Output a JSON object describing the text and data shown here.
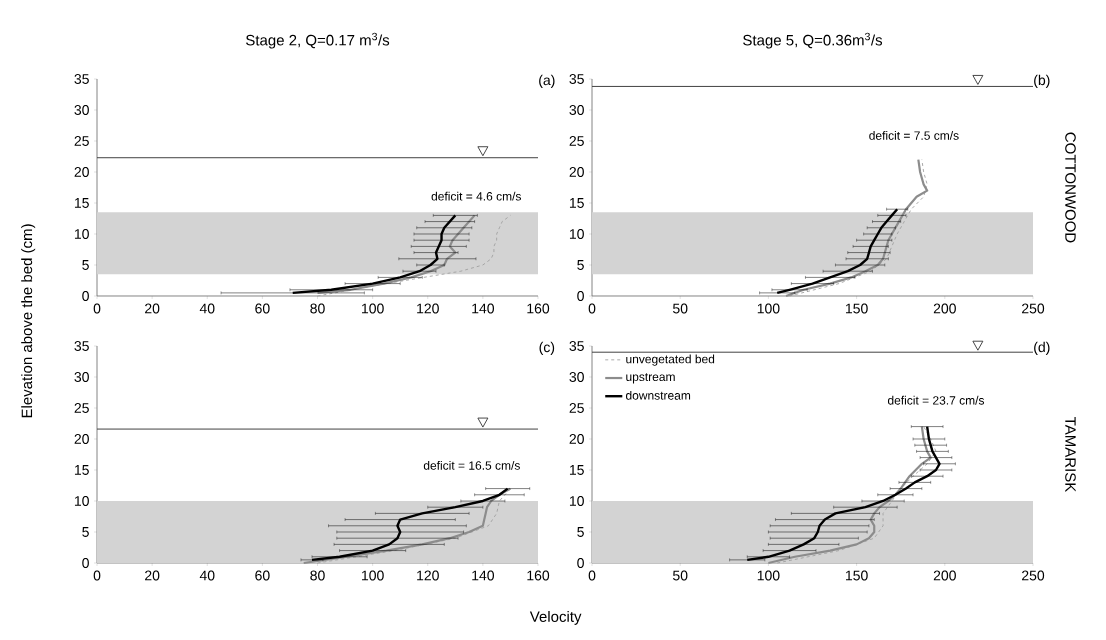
{
  "chart_data": [
    {
      "type": "line",
      "title": "Stage 2, Q=0.17 m$^{3}$/s",
      "ylabel": "Elevation above the bed (cm)",
      "xlim": [
        0,
        160
      ],
      "ylim": [
        0,
        35
      ],
      "xticks": [
        0,
        20,
        40,
        60,
        80,
        100,
        120,
        140,
        160
      ],
      "yticks": [
        0,
        5,
        10,
        15,
        20,
        25,
        30,
        35
      ],
      "marker": "none",
      "legend": false,
      "series": [
        {
          "color": "#a0a0a0",
          "line_style": "dashed",
          "x": [
            80,
            105,
            132,
            140,
            143,
            144,
            144,
            145,
            145,
            146,
            147,
            150
          ],
          "values": [
            0,
            2,
            4,
            5,
            6,
            7,
            8,
            9,
            10,
            11,
            12,
            13
          ]
        },
        {
          "color": "#8c8c8c",
          "line_style": "solid",
          "x": [
            80,
            92,
            104,
            114,
            121,
            126,
            127,
            130,
            128,
            129,
            131,
            133,
            135,
            137
          ],
          "values": [
            0.5,
            1,
            2,
            3,
            4,
            5,
            6,
            7,
            8,
            9,
            10,
            11,
            12,
            13
          ]
        },
        {
          "color": "#000000",
          "line_style": "solid",
          "x": [
            71,
            85,
            100,
            110,
            117,
            121,
            123.5,
            123,
            124,
            125,
            125,
            126,
            128,
            130
          ],
          "values": [
            0.5,
            1,
            2,
            3,
            4,
            5,
            6,
            7,
            8,
            9,
            10,
            11,
            12,
            13
          ],
          "xerrors": [
            26,
            15,
            10,
            8,
            6,
            5,
            14,
            8,
            10,
            10,
            10,
            10,
            9,
            8
          ]
        }
      ],
      "bands": [
        {
          "axis": "y",
          "from": 3.5,
          "to": 13.5,
          "color": "#d3d3d3"
        }
      ],
      "ref_lines": [
        {
          "axis": "y",
          "value": 22.3,
          "color": "#404040"
        }
      ],
      "annotations": [
        "(a)",
        "deficit = 4.6 cm/s"
      ]
    },
    {
      "type": "line",
      "title": "Stage 5, Q=0.36m$^{3}$/s",
      "xlim": [
        0,
        250
      ],
      "ylim": [
        0,
        35
      ],
      "xticks": [
        0,
        50,
        100,
        150,
        200,
        250
      ],
      "yticks": [
        0,
        5,
        10,
        15,
        20,
        25,
        30,
        35
      ],
      "marker": "none",
      "legend": false,
      "series": [
        {
          "color": "#a0a0a0",
          "line_style": "dashed",
          "x": [
            112,
            140,
            158,
            167,
            170,
            173,
            177,
            181,
            188,
            190,
            188,
            187
          ],
          "values": [
            0,
            2,
            4,
            6,
            8,
            10,
            12,
            14,
            16,
            18,
            20,
            22
          ]
        },
        {
          "color": "#8c8c8c",
          "line_style": "solid",
          "x": [
            110,
            120,
            135,
            147,
            155,
            162,
            165,
            166,
            167,
            168,
            170,
            174,
            178,
            184,
            190,
            188,
            186,
            185
          ],
          "values": [
            0,
            1,
            2,
            3,
            4,
            5,
            6,
            7,
            8,
            9,
            10,
            12,
            14,
            16,
            17,
            18,
            20,
            22
          ]
        },
        {
          "color": "#000000",
          "line_style": "solid",
          "x": [
            105,
            112,
            125,
            135,
            145,
            152,
            156,
            157,
            158,
            160,
            162,
            164,
            167,
            170,
            173
          ],
          "values": [
            0.5,
            1,
            2,
            3,
            4,
            5,
            6,
            7,
            8,
            9,
            10,
            11,
            12,
            13,
            14
          ],
          "xerrors": [
            10,
            10,
            12,
            14,
            14,
            14,
            12,
            12,
            10,
            10,
            8,
            8,
            8,
            8,
            6
          ]
        }
      ],
      "bands": [
        {
          "axis": "y",
          "from": 3.5,
          "to": 13.5,
          "color": "#d3d3d3"
        }
      ],
      "ref_lines": [
        {
          "axis": "y",
          "value": 33.8,
          "color": "#404040"
        }
      ],
      "annotations": [
        "(b)",
        "deficit = 7.5 cm/s",
        "COTTONWOOD"
      ]
    },
    {
      "type": "line",
      "xlabel": "Velocity",
      "xlim": [
        0,
        160
      ],
      "ylim": [
        0,
        35
      ],
      "xticks": [
        0,
        20,
        40,
        60,
        80,
        100,
        120,
        140,
        160
      ],
      "yticks": [
        0,
        5,
        10,
        15,
        20,
        25,
        30,
        35
      ],
      "marker": "none",
      "legend": false,
      "series": [
        {
          "color": "#a0a0a0",
          "line_style": "dashed",
          "x": [
            80,
            108,
            130,
            142,
            145,
            146,
            150
          ],
          "values": [
            0,
            2,
            4,
            6,
            8,
            10,
            12
          ]
        },
        {
          "color": "#8c8c8c",
          "line_style": "solid",
          "x": [
            75,
            90,
            105,
            118,
            128,
            135,
            140,
            140.5,
            141,
            141.5,
            143,
            146,
            150
          ],
          "values": [
            0,
            1,
            2,
            3,
            4,
            5,
            6,
            7,
            8,
            9,
            10,
            11,
            12
          ]
        },
        {
          "color": "#000000",
          "line_style": "solid",
          "x": [
            78,
            88,
            100,
            106,
            109,
            110,
            109,
            110,
            118,
            130,
            140,
            146,
            149
          ],
          "values": [
            0.5,
            1,
            2,
            3,
            4,
            5,
            6,
            7,
            8,
            9,
            10,
            11,
            12
          ],
          "xerrors": [
            4,
            10,
            12,
            20,
            22,
            23,
            25,
            20,
            17,
            10,
            8,
            9,
            8
          ]
        }
      ],
      "bands": [
        {
          "axis": "y",
          "from": 0,
          "to": 10,
          "color": "#d3d3d3"
        }
      ],
      "ref_lines": [
        {
          "axis": "y",
          "value": 21.6,
          "color": "#404040"
        }
      ],
      "annotations": [
        "(c)",
        "deficit = 16.5 cm/s"
      ]
    },
    {
      "type": "line",
      "xlim": [
        0,
        250
      ],
      "ylim": [
        0,
        35
      ],
      "xticks": [
        0,
        50,
        100,
        150,
        200,
        250
      ],
      "yticks": [
        0,
        5,
        10,
        15,
        20,
        25,
        30,
        35
      ],
      "marker": "none",
      "legend": "top left",
      "series": [
        {
          "name": "unvegetated bed",
          "color": "#a0a0a0",
          "line_style": "dashed",
          "x": [
            105,
            140,
            160,
            165,
            165,
            170,
            175,
            182,
            190,
            195,
            192,
            188
          ],
          "values": [
            0,
            2,
            4,
            6,
            8,
            10,
            12,
            14,
            16,
            18,
            20,
            22
          ]
        },
        {
          "name": "upstream",
          "color": "#8c8c8c",
          "line_style": "solid",
          "x": [
            100,
            115,
            135,
            150,
            157,
            160,
            160,
            158,
            160,
            163,
            168,
            172,
            175,
            180,
            187,
            192,
            190,
            188,
            187
          ],
          "values": [
            0,
            1,
            2,
            3,
            4,
            5,
            6,
            7,
            8,
            9,
            10,
            11,
            12,
            14,
            16,
            17,
            18,
            20,
            22
          ]
        },
        {
          "name": "downstream",
          "color": "#000000",
          "line_style": "solid",
          "x": [
            88,
            100,
            112,
            120,
            126,
            128,
            129,
            132,
            138,
            155,
            165,
            172,
            178,
            183,
            190,
            195,
            197,
            195,
            193,
            192,
            191,
            190
          ],
          "values": [
            0.5,
            1,
            2,
            3,
            4,
            5,
            6,
            7,
            8,
            9,
            10,
            11,
            12,
            13,
            14,
            15,
            16,
            17,
            18,
            19,
            20,
            22
          ],
          "xerrors": [
            10,
            12,
            15,
            20,
            25,
            28,
            28,
            28,
            25,
            18,
            12,
            10,
            9,
            9,
            9,
            9,
            9,
            9,
            9,
            9,
            9,
            9
          ]
        }
      ],
      "bands": [
        {
          "axis": "y",
          "from": 0,
          "to": 10,
          "color": "#d3d3d3"
        }
      ],
      "ref_lines": [
        {
          "axis": "y",
          "value": 34,
          "color": "#404040"
        }
      ],
      "annotations": [
        "(d)",
        "deficit = 23.7 cm/s",
        "TAMARISK"
      ]
    }
  ]
}
